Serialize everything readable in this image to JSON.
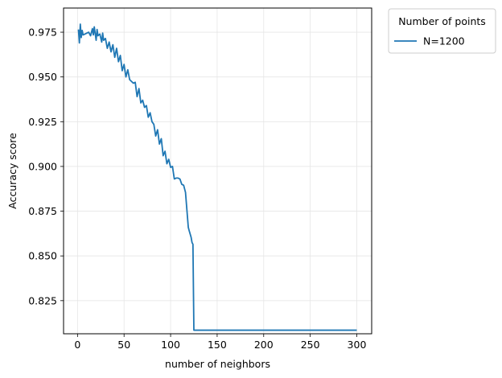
{
  "chart_data": {
    "type": "line",
    "title": "",
    "xlabel": "number of neighbors",
    "ylabel": "Accuracy score",
    "xlim": [
      -15,
      316
    ],
    "ylim": [
      0.8065,
      0.9885
    ],
    "xticks": [
      0,
      50,
      100,
      150,
      200,
      250,
      300
    ],
    "yticks": [
      0.825,
      0.85,
      0.875,
      0.9,
      0.925,
      0.95,
      0.975
    ],
    "xtick_labels": [
      "0",
      "50",
      "100",
      "150",
      "200",
      "250",
      "300"
    ],
    "ytick_labels": [
      "0.825",
      "0.850",
      "0.875",
      "0.900",
      "0.925",
      "0.950",
      "0.975"
    ],
    "grid": true,
    "legend": {
      "title": "Number of points",
      "placement": "outside-top-right"
    },
    "series": [
      {
        "name": "N=1200",
        "color": "#1f77b4",
        "x": [
          1,
          2,
          3,
          4,
          5,
          6,
          8,
          10,
          12,
          14,
          16,
          17,
          18,
          20,
          21,
          22,
          24,
          26,
          27,
          28,
          30,
          32,
          34,
          36,
          38,
          40,
          42,
          44,
          46,
          48,
          50,
          52,
          54,
          56,
          58,
          60,
          62,
          64,
          66,
          68,
          70,
          72,
          74,
          76,
          78,
          80,
          82,
          84,
          86,
          88,
          90,
          92,
          94,
          96,
          98,
          100,
          102,
          104,
          106,
          108,
          110,
          112,
          114,
          116,
          118,
          119,
          120,
          122,
          123,
          124,
          125,
          150,
          200,
          250,
          300
        ],
        "y": [
          0.9765,
          0.969,
          0.9795,
          0.972,
          0.976,
          0.9735,
          0.974,
          0.9745,
          0.975,
          0.973,
          0.977,
          0.9735,
          0.978,
          0.9705,
          0.9765,
          0.973,
          0.974,
          0.9695,
          0.9745,
          0.9705,
          0.9715,
          0.966,
          0.9695,
          0.964,
          0.968,
          0.961,
          0.966,
          0.9585,
          0.962,
          0.9535,
          0.957,
          0.95,
          0.954,
          0.9485,
          0.9475,
          0.9465,
          0.947,
          0.939,
          0.9435,
          0.9355,
          0.937,
          0.933,
          0.934,
          0.9275,
          0.93,
          0.925,
          0.9235,
          0.917,
          0.9205,
          0.9125,
          0.9155,
          0.906,
          0.9085,
          0.9015,
          0.904,
          0.8995,
          0.9,
          0.893,
          0.8935,
          0.8935,
          0.893,
          0.89,
          0.8895,
          0.8855,
          0.8725,
          0.866,
          0.864,
          0.8605,
          0.8575,
          0.8565,
          0.8085,
          0.8085,
          0.8085,
          0.8085,
          0.8085
        ]
      }
    ]
  }
}
